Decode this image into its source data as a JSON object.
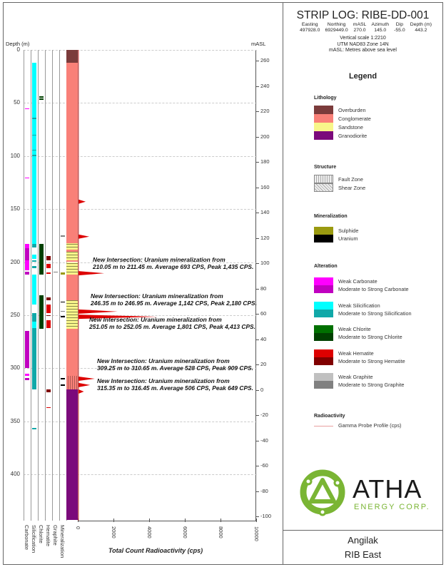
{
  "header": {
    "title": "STRIP LOG: RIBE-DD-001",
    "fields": [
      {
        "label": "Easting",
        "value": "497928.0"
      },
      {
        "label": "Northing",
        "value": "6929449.0"
      },
      {
        "label": "mASL",
        "value": "270.0"
      },
      {
        "label": "Azimuth",
        "value": "145.0"
      },
      {
        "label": "Dip",
        "value": "-55.0"
      },
      {
        "label": "Depth (m)",
        "value": "443.2"
      }
    ],
    "scale": "Vertical scale 1:2210",
    "projection": "UTM NAD83 Zone 14N",
    "masl_note": "mASL: Metres above sea level"
  },
  "axes": {
    "depth_label": "Depth (m)",
    "masl_label": "mASL",
    "depth_ticks": [
      0,
      50,
      100,
      150,
      200,
      250,
      300,
      350,
      400
    ],
    "masl_ticks": [
      260,
      240,
      220,
      200,
      180,
      160,
      140,
      120,
      100,
      80,
      60,
      40,
      20,
      0,
      -20,
      -40,
      -60,
      -80,
      -100
    ],
    "cps_ticks": [
      "0",
      "2000",
      "4000",
      "6000",
      "8000",
      "10000"
    ],
    "cps_title": "Total Count Radioactivity (cps)",
    "column_labels": [
      "Carbonate",
      "Silicification",
      "Chlorite",
      "Hematite",
      "Graphite",
      "Mineralization"
    ]
  },
  "colors": {
    "overburden": "#7b3b3b",
    "conglomerate": "#f98078",
    "sandstone": "#f8f68a",
    "granodiorite": "#7b0a7b",
    "sulphide": "#9a9a10",
    "uranium": "#000000",
    "wcarb": "#ff00ff",
    "mcarb": "#c000c0",
    "wsil": "#00ffff",
    "msil": "#10a8a8",
    "wchl": "#007000",
    "mchl": "#004000",
    "whem": "#dd0000",
    "mhem": "#800000",
    "wgra": "#c0c0c0",
    "mgra": "#808080",
    "gamma": "#dd0000"
  },
  "log": {
    "lithology": [
      [
        0,
        12,
        "overburden"
      ],
      [
        12,
        182,
        "conglomerate"
      ],
      [
        182,
        188,
        "sandstone"
      ],
      [
        188,
        190,
        "conglomerate"
      ],
      [
        190,
        198,
        "sandstone"
      ],
      [
        198,
        200,
        "conglomerate"
      ],
      [
        200,
        212,
        "sandstone"
      ],
      [
        212,
        236,
        "conglomerate"
      ],
      [
        236,
        263,
        "sandstone"
      ],
      [
        263,
        307,
        "conglomerate"
      ],
      [
        307,
        320,
        "conglomerate"
      ],
      [
        320,
        443.2,
        "granodiorite"
      ]
    ],
    "carbonate": [
      [
        55,
        55.6,
        "wcarb"
      ],
      [
        120,
        120.6,
        "wcarb"
      ],
      [
        183,
        187,
        "wcarb"
      ],
      [
        187,
        198,
        "mcarb"
      ],
      [
        198,
        208,
        "wcarb"
      ],
      [
        209,
        212,
        "mcarb"
      ],
      [
        265,
        300,
        "mcarb"
      ],
      [
        305,
        307,
        "wcarb"
      ],
      [
        309,
        311,
        "mcarb"
      ]
    ],
    "silicification": [
      [
        12,
        183,
        "wsil"
      ],
      [
        64,
        65.5,
        "msil"
      ],
      [
        80,
        81,
        "msil"
      ],
      [
        94,
        95,
        "msil"
      ],
      [
        99,
        100.5,
        "msil"
      ],
      [
        183,
        186,
        "msil"
      ],
      [
        193,
        197,
        "wsil"
      ],
      [
        198,
        200,
        "msil"
      ],
      [
        204,
        206,
        "msil"
      ],
      [
        212,
        240,
        "wsil"
      ],
      [
        248,
        256,
        "msil"
      ],
      [
        256,
        262,
        "wsil"
      ],
      [
        262,
        320,
        "msil"
      ],
      [
        356,
        357.5,
        "msil"
      ]
    ],
    "chlorite": [
      [
        44,
        44.6,
        "mchl"
      ],
      [
        46,
        46.6,
        "mchl"
      ],
      [
        183,
        212,
        "mchl"
      ],
      [
        231,
        263,
        "mchl"
      ]
    ],
    "hematite": [
      [
        194,
        198,
        "mhem"
      ],
      [
        202,
        206,
        "whem"
      ],
      [
        210,
        211,
        "whem"
      ],
      [
        233,
        236,
        "mhem"
      ],
      [
        240,
        248,
        "whem"
      ],
      [
        250,
        251,
        "mhem"
      ],
      [
        255,
        262,
        "whem"
      ],
      [
        320,
        323,
        "mhem"
      ],
      [
        337,
        337.8,
        "whem"
      ]
    ],
    "graphite": [
      [
        209,
        209.6,
        "mgra"
      ]
    ],
    "mineralization": [
      [
        175,
        175.5,
        "mgra"
      ],
      [
        210,
        212,
        "sulphide"
      ],
      [
        237,
        238,
        "uranium"
      ],
      [
        246,
        246.6,
        "mgra"
      ],
      [
        251,
        251.6,
        "uranium"
      ],
      [
        309,
        310.6,
        "uranium"
      ],
      [
        315,
        316.4,
        "uranium"
      ]
    ],
    "gamma_peaks": [
      [
        143,
        400
      ],
      [
        176,
        600
      ],
      [
        210.5,
        1435
      ],
      [
        246.6,
        2180
      ],
      [
        251.5,
        4413
      ],
      [
        309.9,
        909
      ],
      [
        315.9,
        649
      ],
      [
        322,
        300
      ]
    ]
  },
  "annotations": [
    {
      "line1": "New Intersection: Uranium mineralization from",
      "line2": "210.05 m to 211.45 m. Average 693 CPS, Peak 1,435 CPS."
    },
    {
      "line1": "New Intersection: Uranium mineralization from",
      "line2": "246.35 m to 246.95 m. Average 1,142 CPS, Peak 2,180 CPS."
    },
    {
      "line1": "New Intersection: Uranium mineralization from",
      "line2": "251.05 m to 252.05 m. Average 1,801 CPS, Peak 4,413 CPS."
    },
    {
      "line1": "New Intersection: Uranium mineralization from",
      "line2": "309.25 m to 310.65 m. Average 528 CPS, Peak 909 CPS."
    },
    {
      "line1": "New Intersection: Uranium mineralization from",
      "line2": "315.35 m to 316.45 m. Average 506 CPS, Peak 649 CPS."
    }
  ],
  "legend": {
    "title": "Legend",
    "lithology": {
      "title": "Lithology",
      "items": [
        {
          "label": "Overburden",
          "color": "overburden"
        },
        {
          "label": "Conglomerate",
          "color": "conglomerate"
        },
        {
          "label": "Sandstone",
          "color": "sandstone"
        },
        {
          "label": "Granodiorite",
          "color": "granodiorite"
        }
      ]
    },
    "structure": {
      "title": "Structure",
      "items": [
        {
          "label": "Fault Zone"
        },
        {
          "label": "Shear Zone"
        }
      ]
    },
    "mineralization": {
      "title": "Mineralization",
      "items": [
        {
          "label": "Sulphide",
          "color": "sulphide"
        },
        {
          "label": "Uranium",
          "color": "uranium"
        }
      ]
    },
    "alteration": {
      "title": "Alteration",
      "items": [
        {
          "label": "Weak Carbonate",
          "color": "wcarb"
        },
        {
          "label": "Moderate to Strong Carbonate",
          "color": "mcarb"
        },
        {
          "label": "Weak Silicification",
          "color": "wsil"
        },
        {
          "label": "Moderate to Strong Silicification",
          "color": "msil"
        },
        {
          "label": "Weak Chlorite",
          "color": "wchl"
        },
        {
          "label": "Moderate to Strong Chlorite",
          "color": "mchl"
        },
        {
          "label": "Weak Hematite",
          "color": "whem"
        },
        {
          "label": "Moderate to Strong Hematite",
          "color": "mhem"
        },
        {
          "label": "Weak Graphite",
          "color": "wgra"
        },
        {
          "label": "Moderate to Strong Graphite",
          "color": "mgra"
        }
      ]
    },
    "radioactivity": {
      "title": "Radioactivity",
      "items": [
        {
          "label": "Gamma Probe Profile (cps)"
        }
      ]
    }
  },
  "logo": {
    "name": "ATHA",
    "sub": "ENERGY CORP."
  },
  "footer": {
    "project": "Angilak",
    "area": "RIB East"
  }
}
